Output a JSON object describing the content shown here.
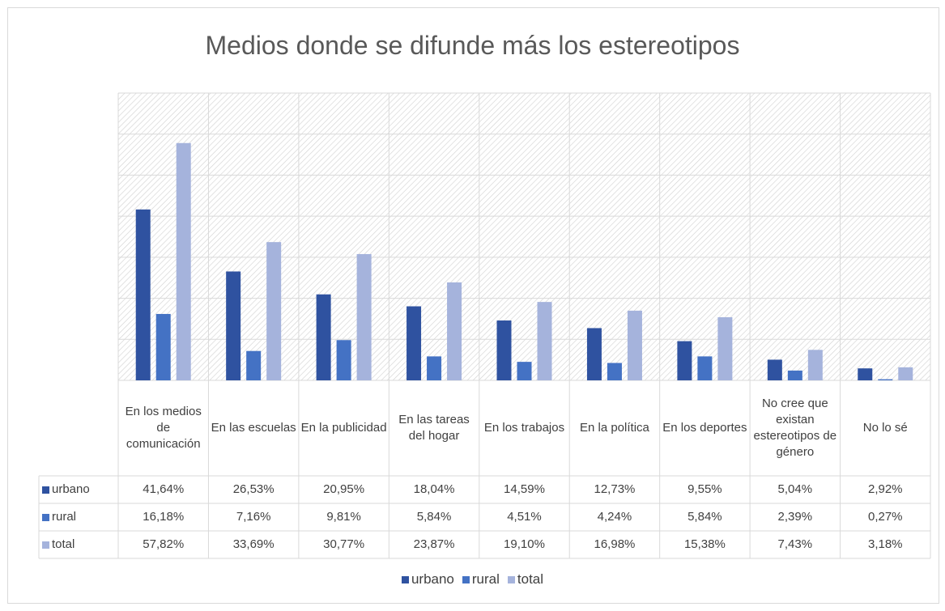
{
  "chart_data": {
    "type": "bar",
    "title": "Medios donde se difunde más los estereotipos",
    "categories": [
      "En los medios de comunicación",
      "En las escuelas",
      "En la publicidad",
      "En las tareas del hogar",
      "En los trabajos",
      "En la política",
      "En los deportes",
      "No cree que existan estereotipos de género",
      "No lo sé"
    ],
    "series": [
      {
        "name": "urbano",
        "color": "#2f52a0",
        "values": [
          41.64,
          26.53,
          20.95,
          18.04,
          14.59,
          12.73,
          9.55,
          5.04,
          2.92
        ],
        "value_labels": [
          "41,64%",
          "26,53%",
          "20,95%",
          "18,04%",
          "14,59%",
          "12,73%",
          "9,55%",
          "5,04%",
          "2,92%"
        ]
      },
      {
        "name": "rural",
        "color": "#4472c4",
        "values": [
          16.18,
          7.16,
          9.81,
          5.84,
          4.51,
          4.24,
          5.84,
          2.39,
          0.27
        ],
        "value_labels": [
          "16,18%",
          "7,16%",
          "9,81%",
          "5,84%",
          "4,51%",
          "4,24%",
          "5,84%",
          "2,39%",
          "0,27%"
        ]
      },
      {
        "name": "total",
        "color": "#a5b3dc",
        "values": [
          57.82,
          33.69,
          30.77,
          23.87,
          19.1,
          16.98,
          15.38,
          7.43,
          3.18
        ],
        "value_labels": [
          "57,82%",
          "33,69%",
          "30,77%",
          "23,87%",
          "19,10%",
          "16,98%",
          "15,38%",
          "7,43%",
          "3,18%"
        ]
      }
    ],
    "ylim": [
      0,
      70
    ],
    "yticks": [
      0,
      10,
      20,
      30,
      40,
      50,
      60,
      70
    ],
    "grid": true,
    "legend": "bottom"
  }
}
